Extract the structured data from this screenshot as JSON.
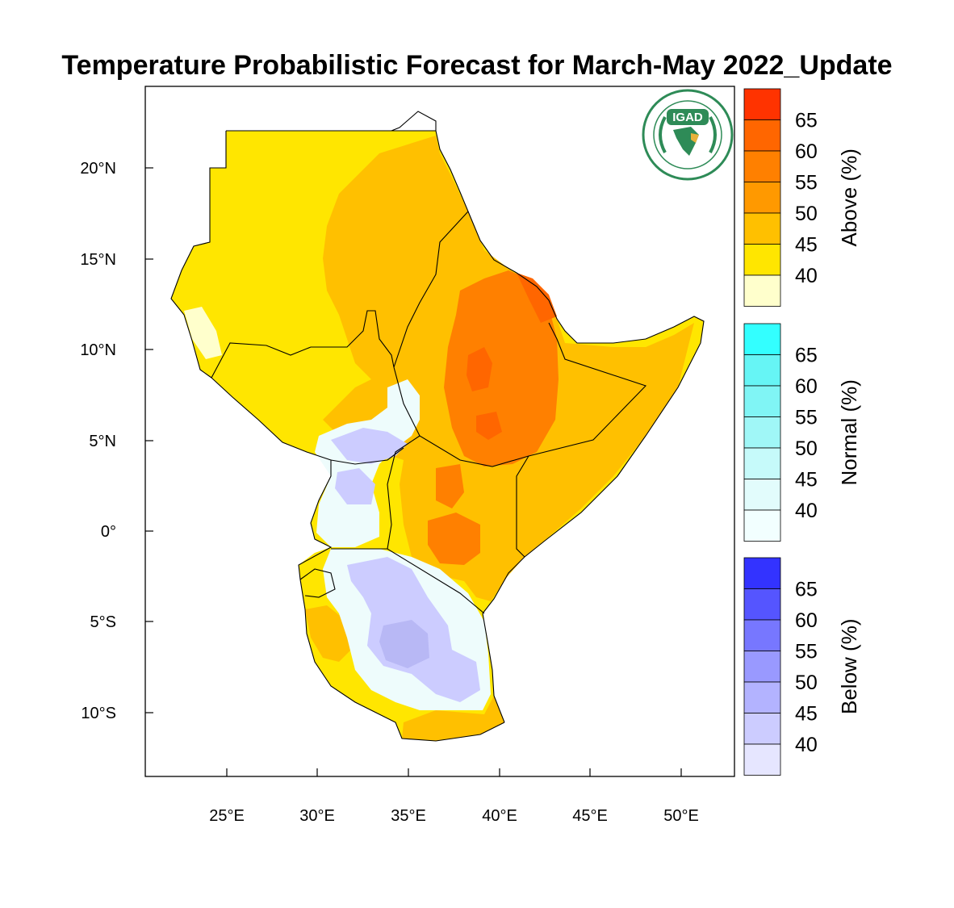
{
  "title": "Temperature Probabilistic Forecast for March-May 2022_Update",
  "logo": {
    "text": "IGAD",
    "icon": "igad-logo-icon",
    "ring_color": "#2e8b57"
  },
  "axes": {
    "lon_ticks": [
      "25°E",
      "30°E",
      "35°E",
      "40°E",
      "45°E",
      "50°E"
    ],
    "lat_ticks": [
      "20°N",
      "15°N",
      "10°N",
      "5°N",
      "0°",
      "5°S",
      "10°S"
    ]
  },
  "colorbars": [
    {
      "title": "Above (%)",
      "labels": [
        "65",
        "60",
        "55",
        "50",
        "45",
        "40"
      ],
      "colors": [
        "#ff3300",
        "#ff6600",
        "#ff8000",
        "#ff9900",
        "#ffc000",
        "#ffe600",
        "#ffffcc"
      ]
    },
    {
      "title": "Normal (%)",
      "labels": [
        "65",
        "60",
        "55",
        "50",
        "45",
        "40"
      ],
      "colors": [
        "#33ffff",
        "#66f5f5",
        "#80f5f5",
        "#a0f7f7",
        "#c6fafa",
        "#e2fcfc",
        "#f2ffff"
      ]
    },
    {
      "title": "Below (%)",
      "labels": [
        "65",
        "60",
        "55",
        "50",
        "45",
        "40"
      ],
      "colors": [
        "#3333ff",
        "#5555ff",
        "#7777ff",
        "#9999ff",
        "#b3b3ff",
        "#ccccff",
        "#e6e6ff"
      ]
    }
  ],
  "colors": {
    "above_40": "#ffe600",
    "above_45": "#ffc000",
    "above_50": "#ff9900",
    "above_55": "#ff8000",
    "above_60": "#ff6600",
    "normal_40": "#eefcfc",
    "below_45": "#ccccff",
    "below_50": "#b8b8f5",
    "below_40": "#e6e6ff",
    "light_yellow": "#ffffcc"
  }
}
